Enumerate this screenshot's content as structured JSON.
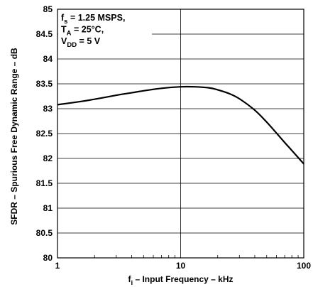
{
  "chart_data": {
    "type": "line",
    "title": "",
    "xlabel": {
      "main": "f",
      "sub": "i",
      "rest": " – Input Frequency – kHz"
    },
    "ylabel": "SFDR – Spurious Free Dynamic Range – dB",
    "x_scale": "log",
    "xlim": [
      1,
      100
    ],
    "ylim": [
      80,
      85
    ],
    "x_ticks": [
      1,
      10,
      100
    ],
    "x_tick_labels": [
      "1",
      "10",
      "100"
    ],
    "y_ticks": [
      80,
      80.5,
      81,
      81.5,
      82,
      82.5,
      83,
      83.5,
      84,
      84.5,
      85
    ],
    "y_tick_labels": [
      "80",
      "80.5",
      "81",
      "81.5",
      "82",
      "82.5",
      "83",
      "83.5",
      "84",
      "84.5",
      "85"
    ],
    "grid": true,
    "annotation": [
      {
        "main": "f",
        "sub": "s",
        "rest": " = 1.25 MSPS,"
      },
      {
        "main": "T",
        "sub": "A",
        "rest": " = 25°C,"
      },
      {
        "main": "V",
        "sub": "DD",
        "rest": " = 5 V"
      }
    ],
    "series": [
      {
        "x": [
          1,
          1.5,
          2,
          3,
          4,
          5,
          7,
          10,
          13,
          17,
          20,
          25,
          30,
          40,
          50,
          60,
          70,
          80,
          100
        ],
        "y": [
          83.08,
          83.14,
          83.19,
          83.27,
          83.32,
          83.36,
          83.41,
          83.44,
          83.44,
          83.42,
          83.38,
          83.3,
          83.2,
          82.97,
          82.73,
          82.51,
          82.32,
          82.16,
          81.89
        ]
      }
    ]
  }
}
